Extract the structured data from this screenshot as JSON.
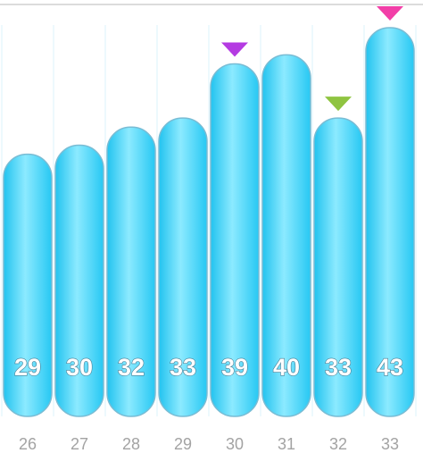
{
  "chart_data": {
    "type": "bar",
    "title": "",
    "xlabel": "",
    "ylabel": "",
    "categories": [
      "26",
      "27",
      "28",
      "29",
      "30",
      "31",
      "32",
      "33"
    ],
    "values": [
      29,
      30,
      32,
      33,
      39,
      40,
      33,
      43
    ],
    "ylim": [
      0,
      43
    ],
    "grid": true,
    "legend": "none",
    "bar_color": "#3fd2fa",
    "markers": [
      {
        "category": "30",
        "shape": "down-triangle",
        "color": "#b43be2"
      },
      {
        "category": "32",
        "shape": "down-triangle",
        "color": "#8fc441"
      },
      {
        "category": "33",
        "shape": "down-triangle",
        "color": "#f23fa8"
      }
    ]
  }
}
